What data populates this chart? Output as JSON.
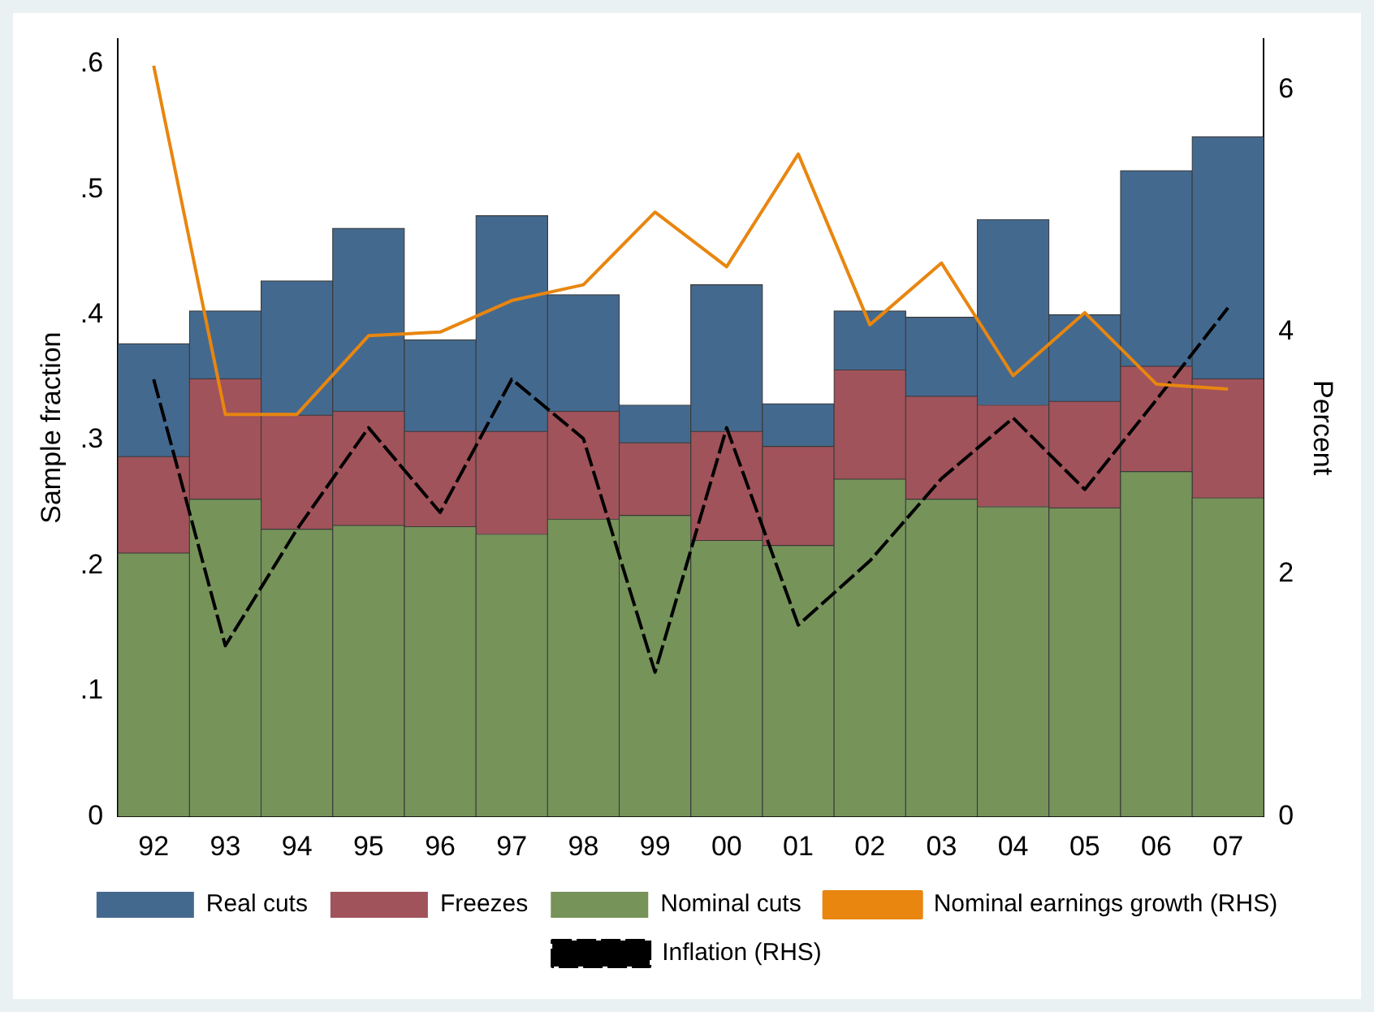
{
  "chart_data": {
    "type": "bar",
    "stacked": true,
    "ylabel": "Sample fraction",
    "y2label": "Percent",
    "categories": [
      "92",
      "93",
      "94",
      "95",
      "96",
      "97",
      "98",
      "99",
      "00",
      "01",
      "02",
      "03",
      "04",
      "05",
      "06",
      "07"
    ],
    "series": [
      {
        "name": "Nominal cuts",
        "color": "#76935a",
        "values": [
          0.21,
          0.253,
          0.229,
          0.232,
          0.231,
          0.225,
          0.237,
          0.24,
          0.22,
          0.216,
          0.269,
          0.253,
          0.247,
          0.246,
          0.275,
          0.254
        ]
      },
      {
        "name": "Freezes",
        "color": "#a0535a",
        "values": [
          0.077,
          0.096,
          0.091,
          0.091,
          0.076,
          0.082,
          0.086,
          0.058,
          0.087,
          0.079,
          0.087,
          0.082,
          0.081,
          0.085,
          0.084,
          0.095
        ]
      },
      {
        "name": "Real cuts",
        "color": "#44698f",
        "values": [
          0.09,
          0.054,
          0.107,
          0.146,
          0.073,
          0.172,
          0.093,
          0.03,
          0.117,
          0.034,
          0.047,
          0.063,
          0.148,
          0.069,
          0.156,
          0.193
        ]
      },
      {
        "name": "Nominal earnings growth (RHS)",
        "type": "line",
        "axis": "y2",
        "color": "#e8860f",
        "line_style": "solid",
        "values": [
          6.2,
          3.32,
          3.32,
          3.97,
          4.0,
          4.26,
          4.39,
          4.99,
          4.54,
          5.47,
          4.06,
          4.57,
          3.64,
          4.16,
          3.57,
          3.53
        ]
      },
      {
        "name": "Inflation (RHS)",
        "type": "line",
        "axis": "y2",
        "color": "#000000",
        "line_style": "dashed",
        "values": [
          3.61,
          1.41,
          2.37,
          3.21,
          2.51,
          3.61,
          3.12,
          1.19,
          3.21,
          1.58,
          2.11,
          2.79,
          3.29,
          2.7,
          3.44,
          4.2
        ]
      }
    ],
    "ylim": [
      0,
      0.62
    ],
    "yticks": [
      0,
      {
        "value": 0.1,
        "label": ".1"
      },
      {
        "value": 0.2,
        "label": ".2"
      },
      {
        "value": 0.3,
        "label": ".3"
      },
      {
        "value": 0.4,
        "label": ".4"
      },
      {
        "value": 0.5,
        "label": ".5"
      },
      {
        "value": 0.6,
        "label": ".6"
      }
    ],
    "y2lim": [
      0,
      6.42
    ],
    "y2ticks": [
      0,
      2,
      4,
      6
    ],
    "grid": false,
    "legend": "bottom",
    "marker": "none"
  }
}
